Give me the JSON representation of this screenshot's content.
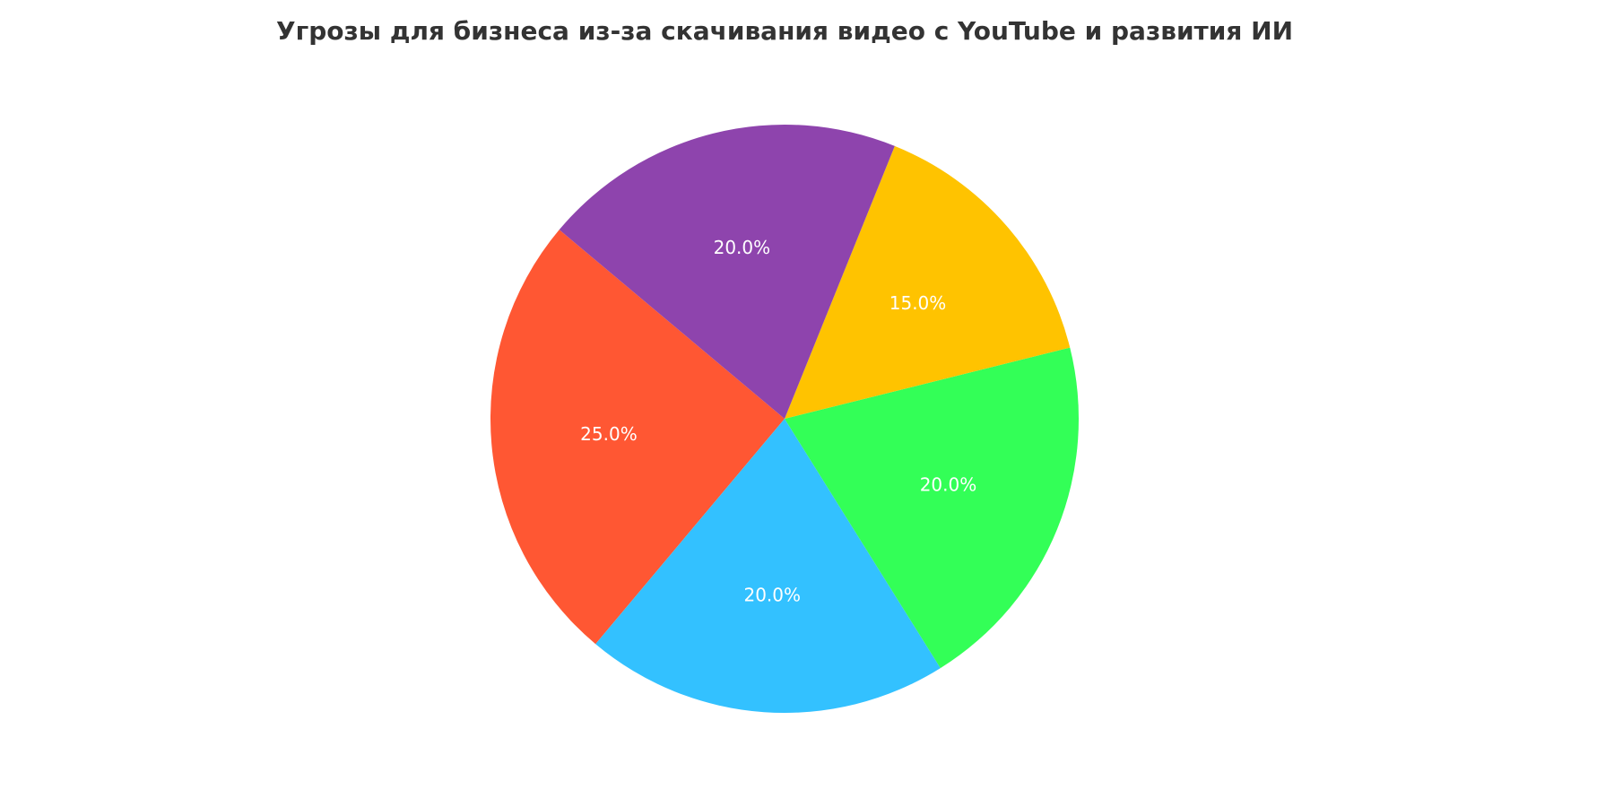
{
  "chart_data": {
    "type": "pie",
    "title": "Угрозы для бизнеса из-за скачивания видео с YouTube и развития ИИ",
    "start_angle_deg": 140,
    "direction": "counterclockwise",
    "slices": [
      {
        "value": 25,
        "label_text": "25.0%",
        "color": "#FF5733"
      },
      {
        "value": 20,
        "label_text": "20.0%",
        "color": "#33C1FF"
      },
      {
        "value": 20,
        "label_text": "20.0%",
        "color": "#33FF57"
      },
      {
        "value": 15,
        "label_text": "15.0%",
        "color": "#FFC300"
      },
      {
        "value": 20,
        "label_text": "20.0%",
        "color": "#8E44AD"
      }
    ],
    "legend": "none"
  }
}
